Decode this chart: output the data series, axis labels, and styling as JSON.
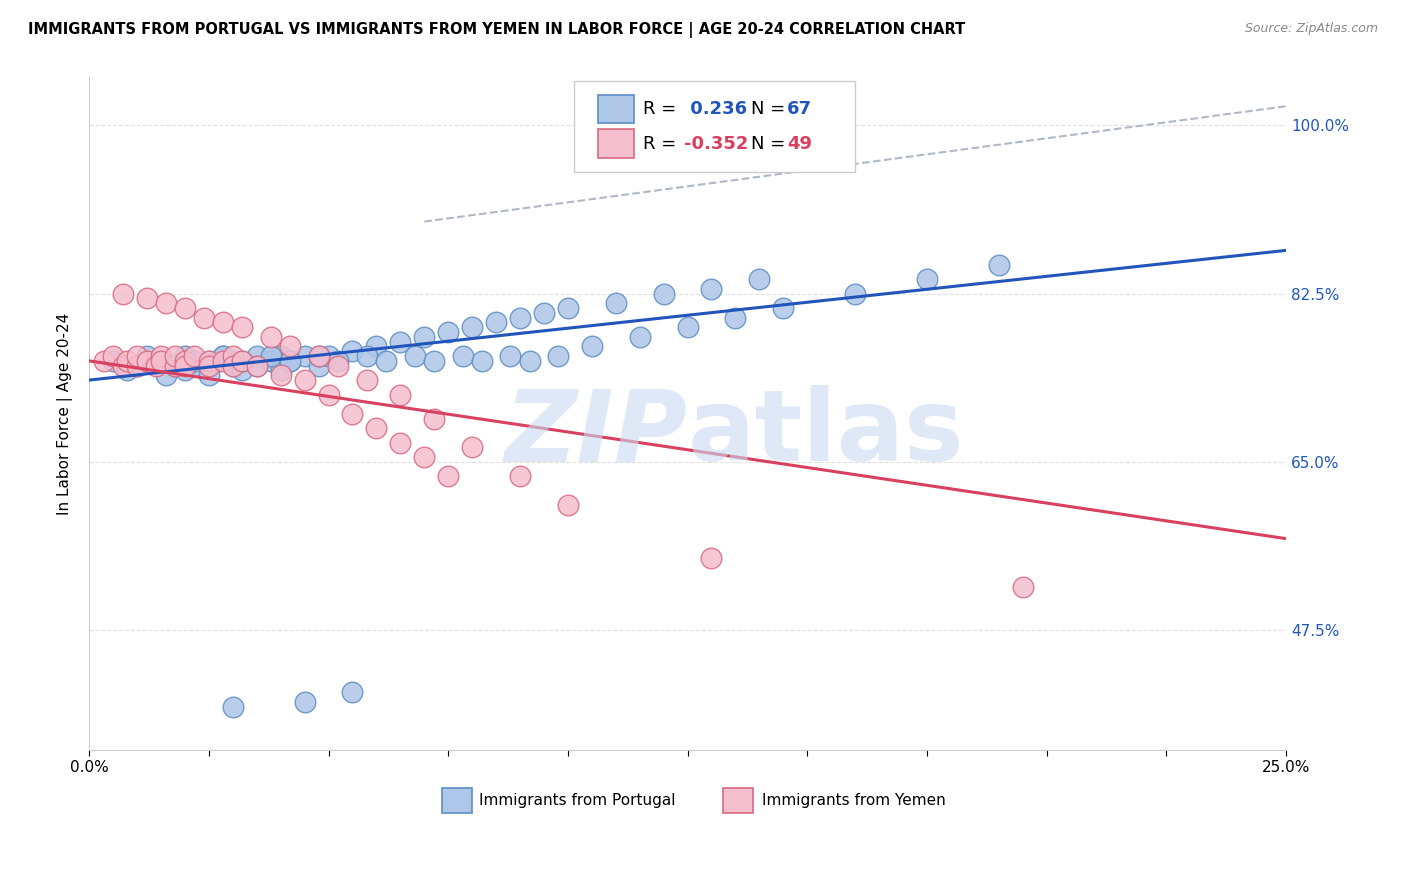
{
  "title": "IMMIGRANTS FROM PORTUGAL VS IMMIGRANTS FROM YEMEN IN LABOR FORCE | AGE 20-24 CORRELATION CHART",
  "source": "Source: ZipAtlas.com",
  "ylabel": "In Labor Force | Age 20-24",
  "xlim": [
    0.0,
    0.25
  ],
  "ylim": [
    0.35,
    1.05
  ],
  "yticks": [
    0.475,
    0.65,
    0.825,
    1.0
  ],
  "ytick_labels": [
    "47.5%",
    "65.0%",
    "82.5%",
    "100.0%"
  ],
  "xticks": [
    0.0,
    0.025,
    0.05,
    0.075,
    0.1,
    0.125,
    0.15,
    0.175,
    0.2,
    0.225,
    0.25
  ],
  "xtick_labels": [
    "0.0%",
    "",
    "",
    "",
    "",
    "",
    "",
    "",
    "",
    "",
    "25.0%"
  ],
  "portugal_color": "#aec6e8",
  "portugal_edge": "#5b8ec4",
  "yemen_color": "#f5bece",
  "yemen_edge": "#d9697e",
  "blue_line_color": "#2255bb",
  "pink_line_color": "#d94060",
  "dashed_line_color": "#b0b8c8",
  "watermark_color": "#c8daf0",
  "background_color": "#ffffff",
  "grid_color": "#e0e0e0",
  "portugal_x": [
    0.005,
    0.008,
    0.01,
    0.012,
    0.015,
    0.016,
    0.018,
    0.02,
    0.02,
    0.022,
    0.025,
    0.025,
    0.027,
    0.028,
    0.03,
    0.03,
    0.032,
    0.035,
    0.035,
    0.038,
    0.04,
    0.04,
    0.042,
    0.045,
    0.048,
    0.05,
    0.055,
    0.06,
    0.065,
    0.07,
    0.075,
    0.08,
    0.085,
    0.09,
    0.095,
    0.1,
    0.11,
    0.12,
    0.13,
    0.14,
    0.022,
    0.028,
    0.032,
    0.038,
    0.042,
    0.048,
    0.052,
    0.058,
    0.062,
    0.068,
    0.072,
    0.078,
    0.082,
    0.088,
    0.092,
    0.098,
    0.105,
    0.115,
    0.125,
    0.135,
    0.145,
    0.16,
    0.175,
    0.19,
    0.03,
    0.045,
    0.055
  ],
  "portugal_y": [
    0.755,
    0.745,
    0.75,
    0.76,
    0.755,
    0.74,
    0.75,
    0.745,
    0.76,
    0.75,
    0.755,
    0.74,
    0.755,
    0.76,
    0.75,
    0.755,
    0.745,
    0.76,
    0.75,
    0.755,
    0.76,
    0.745,
    0.755,
    0.76,
    0.75,
    0.76,
    0.765,
    0.77,
    0.775,
    0.78,
    0.785,
    0.79,
    0.795,
    0.8,
    0.805,
    0.81,
    0.815,
    0.825,
    0.83,
    0.84,
    0.755,
    0.76,
    0.755,
    0.76,
    0.755,
    0.76,
    0.755,
    0.76,
    0.755,
    0.76,
    0.755,
    0.76,
    0.755,
    0.76,
    0.755,
    0.76,
    0.77,
    0.78,
    0.79,
    0.8,
    0.81,
    0.825,
    0.84,
    0.855,
    0.395,
    0.4,
    0.41
  ],
  "yemen_x": [
    0.003,
    0.005,
    0.007,
    0.008,
    0.01,
    0.01,
    0.012,
    0.014,
    0.015,
    0.015,
    0.018,
    0.018,
    0.02,
    0.02,
    0.022,
    0.025,
    0.025,
    0.028,
    0.03,
    0.03,
    0.032,
    0.035,
    0.04,
    0.045,
    0.05,
    0.055,
    0.06,
    0.065,
    0.07,
    0.075,
    0.007,
    0.012,
    0.016,
    0.02,
    0.024,
    0.028,
    0.032,
    0.038,
    0.042,
    0.048,
    0.052,
    0.058,
    0.065,
    0.072,
    0.08,
    0.09,
    0.1,
    0.13,
    0.195
  ],
  "yemen_y": [
    0.755,
    0.76,
    0.75,
    0.755,
    0.75,
    0.76,
    0.755,
    0.75,
    0.76,
    0.755,
    0.75,
    0.76,
    0.755,
    0.75,
    0.76,
    0.755,
    0.75,
    0.755,
    0.76,
    0.75,
    0.755,
    0.75,
    0.74,
    0.735,
    0.72,
    0.7,
    0.685,
    0.67,
    0.655,
    0.635,
    0.825,
    0.82,
    0.815,
    0.81,
    0.8,
    0.795,
    0.79,
    0.78,
    0.77,
    0.76,
    0.75,
    0.735,
    0.72,
    0.695,
    0.665,
    0.635,
    0.605,
    0.55,
    0.52
  ],
  "port_trend_x": [
    0.0,
    0.25
  ],
  "port_trend_y": [
    0.735,
    0.87
  ],
  "yem_trend_x": [
    0.0,
    0.25
  ],
  "yem_trend_y": [
    0.755,
    0.57
  ],
  "dash_trend_x": [
    0.07,
    0.25
  ],
  "dash_trend_y": [
    0.9,
    1.02
  ]
}
